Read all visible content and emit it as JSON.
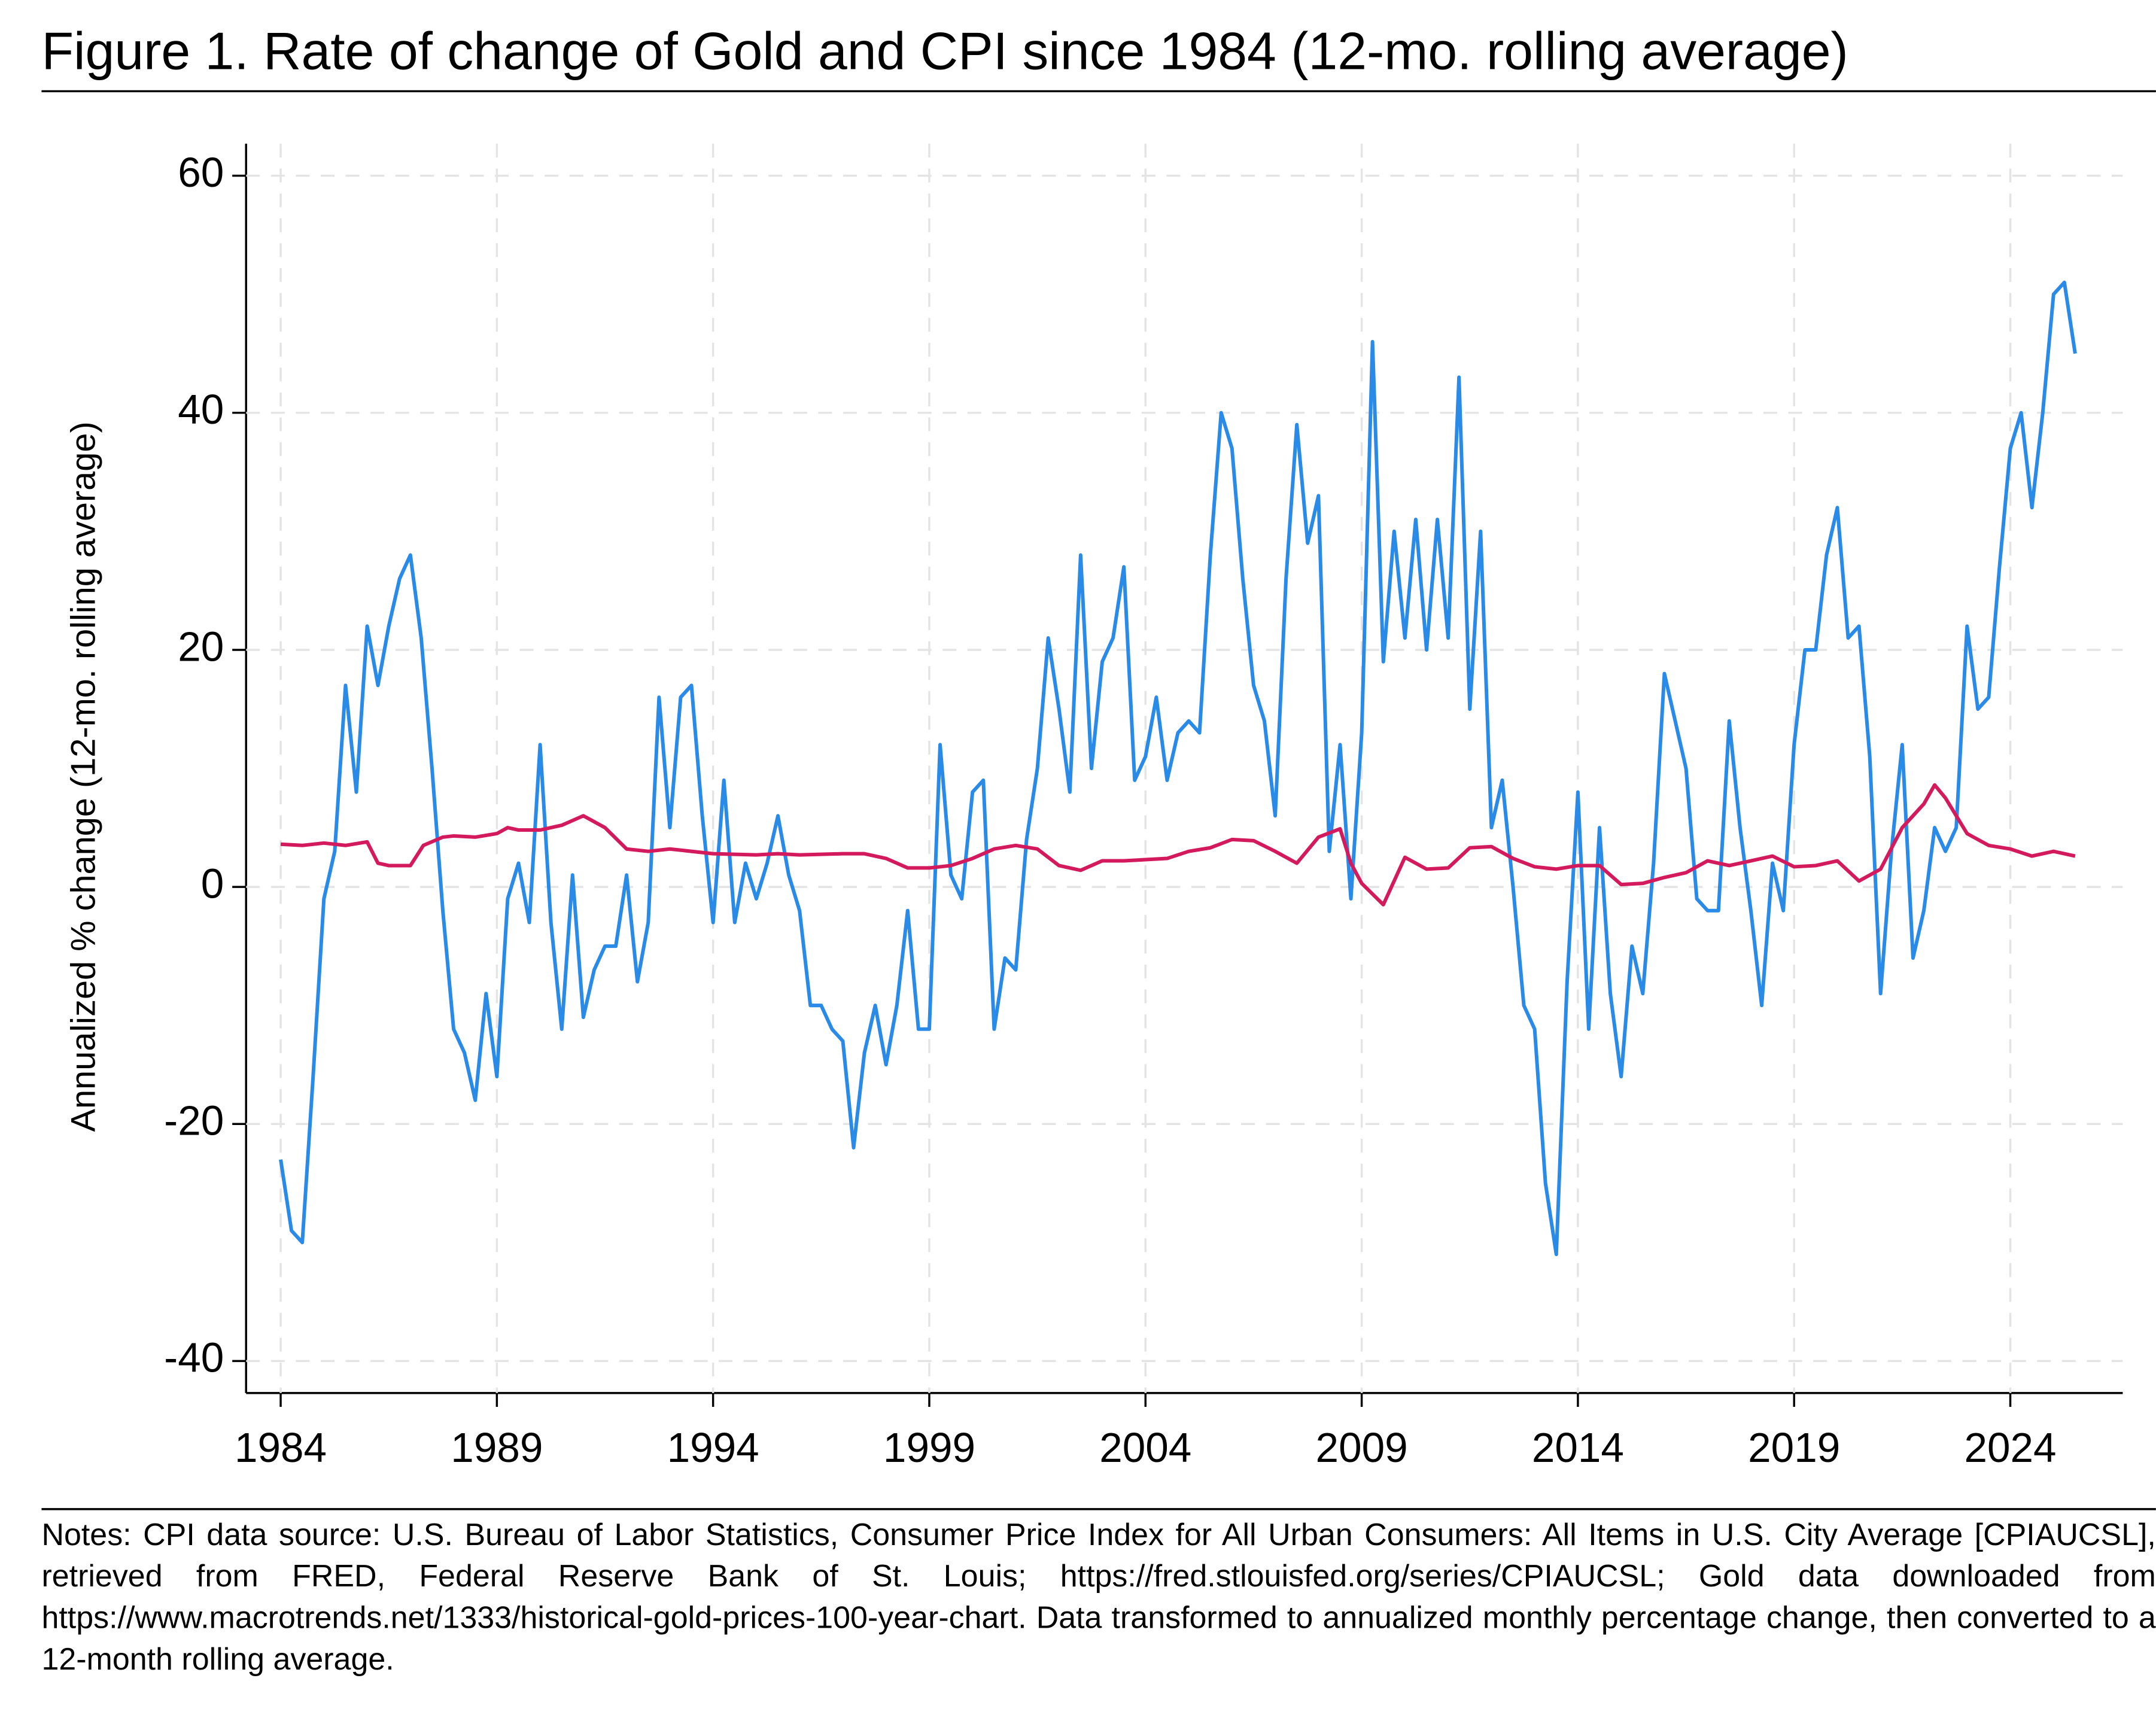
{
  "chart_data": {
    "type": "line",
    "title": "Figure 1. Rate of change of Gold and CPI since 1984 (12-mo. rolling average)",
    "y_label": "Annualized % change (12-mo. rolling average)",
    "notes": "Notes: CPI data source: U.S. Bureau of Labor Statistics, Consumer Price Index for All Urban Consumers: All Items in U.S. City Average [CPIAUCSL], retrieved from FRED, Federal Reserve Bank of St. Louis; https://fred.stlouisfed.org/series/CPIAUCSL; Gold data downloaded from https://www.macrotrends.net/1333/historical-gold-prices-100-year-chart. Data transformed to annualized monthly percentage change, then converted to a 12-month rolling average.",
    "xlim": [
      1983.2,
      2026.6
    ],
    "ylim": [
      -42.7,
      62.7
    ],
    "xticks": [
      1984,
      1989,
      1994,
      1999,
      2004,
      2009,
      2014,
      2019,
      2024
    ],
    "yticks": [
      -40,
      -20,
      0,
      20,
      40,
      60
    ],
    "grid": true,
    "series": [
      {
        "color": "#2a8ae8",
        "x": [
          1984,
          1984.25,
          1984.5,
          1984.75,
          1985,
          1985.25,
          1985.5,
          1985.75,
          1986,
          1986.25,
          1986.5,
          1986.75,
          1987,
          1987.25,
          1987.5,
          1987.75,
          1988,
          1988.25,
          1988.5,
          1988.75,
          1989,
          1989.25,
          1989.5,
          1989.75,
          1990,
          1990.25,
          1990.5,
          1990.75,
          1991,
          1991.25,
          1991.5,
          1991.75,
          1992,
          1992.25,
          1992.5,
          1992.75,
          1993,
          1993.25,
          1993.5,
          1993.75,
          1994,
          1994.25,
          1994.5,
          1994.75,
          1995,
          1995.25,
          1995.5,
          1995.75,
          1996,
          1996.25,
          1996.5,
          1996.75,
          1997,
          1997.25,
          1997.5,
          1997.75,
          1998,
          1998.25,
          1998.5,
          1998.75,
          1999,
          1999.25,
          1999.5,
          1999.75,
          2000,
          2000.25,
          2000.5,
          2000.75,
          2001,
          2001.25,
          2001.5,
          2001.75,
          2002,
          2002.25,
          2002.5,
          2002.75,
          2003,
          2003.25,
          2003.5,
          2003.75,
          2004,
          2004.25,
          2004.5,
          2004.75,
          2005,
          2005.25,
          2005.5,
          2005.75,
          2006,
          2006.25,
          2006.5,
          2006.75,
          2007,
          2007.25,
          2007.5,
          2007.75,
          2008,
          2008.25,
          2008.5,
          2008.75,
          2009,
          2009.25,
          2009.5,
          2009.75,
          2010,
          2010.25,
          2010.5,
          2010.75,
          2011,
          2011.25,
          2011.5,
          2011.75,
          2012,
          2012.25,
          2012.5,
          2012.75,
          2013,
          2013.25,
          2013.5,
          2013.75,
          2014,
          2014.25,
          2014.5,
          2014.75,
          2015,
          2015.25,
          2015.5,
          2015.75,
          2016,
          2016.25,
          2016.5,
          2016.75,
          2017,
          2017.25,
          2017.5,
          2017.75,
          2018,
          2018.25,
          2018.5,
          2018.75,
          2019,
          2019.25,
          2019.5,
          2019.75,
          2020,
          2020.25,
          2020.5,
          2020.75,
          2021,
          2021.25,
          2021.5,
          2021.75,
          2022,
          2022.25,
          2022.5,
          2022.75,
          2023,
          2023.25,
          2023.5,
          2023.75,
          2024,
          2024.25,
          2024.5,
          2024.75,
          2025,
          2025.25,
          2025.5
        ],
        "values": [
          -23,
          -29,
          -30,
          -16,
          -1,
          3,
          17,
          8,
          22,
          17,
          22,
          26,
          28,
          21,
          10,
          -2,
          -12,
          -14,
          -18,
          -9,
          -16,
          -1,
          2,
          -3,
          12,
          -3,
          -12,
          1,
          -11,
          -7,
          -5,
          -5,
          1,
          -8,
          -3,
          16,
          5,
          16,
          17,
          6,
          -3,
          9,
          -3,
          2,
          -1,
          2,
          6,
          1,
          -2,
          -10,
          -10,
          -12,
          -13,
          -22,
          -14,
          -10,
          -15,
          -10,
          -2,
          -12,
          -12,
          12,
          1,
          -1,
          8,
          9,
          -12,
          -6,
          -7,
          4,
          10,
          21,
          15,
          8,
          28,
          10,
          19,
          21,
          27,
          9,
          11,
          16,
          9,
          13,
          14,
          13,
          28,
          40,
          37,
          26,
          17,
          14,
          6,
          26,
          39,
          29,
          33,
          3,
          12,
          -1,
          13,
          46,
          19,
          30,
          21,
          31,
          20,
          31,
          21,
          43,
          15,
          30,
          5,
          9,
          0,
          -10,
          -12,
          -25,
          -31,
          -8,
          8,
          -12,
          5,
          -9,
          -16,
          -5,
          -9,
          2,
          18,
          14,
          10,
          -1,
          -2,
          -2,
          14,
          5,
          -2,
          -10,
          2,
          -2,
          12,
          20,
          20,
          28,
          32,
          21,
          22,
          11,
          -9,
          3,
          12,
          -6,
          -2,
          5,
          3,
          5,
          22,
          15,
          16,
          27,
          37,
          40,
          32,
          40,
          50,
          51,
          45
        ]
      },
      {
        "color": "#d31a5c",
        "x": [
          1984,
          1984.5,
          1985,
          1985.5,
          1986,
          1986.25,
          1986.5,
          1987,
          1987.3,
          1987.75,
          1988,
          1988.5,
          1989,
          1989.25,
          1989.5,
          1990,
          1990.5,
          1991,
          1991.5,
          1992,
          1992.5,
          1993,
          1994,
          1995,
          1995.5,
          1996,
          1997,
          1997.5,
          1998,
          1998.5,
          1999,
          1999.5,
          2000,
          2000.5,
          2001,
          2001.5,
          2002,
          2002.5,
          2003,
          2003.5,
          2004,
          2004.5,
          2005,
          2005.5,
          2006,
          2006.5,
          2007,
          2007.5,
          2008,
          2008.5,
          2008.75,
          2009,
          2009.5,
          2010,
          2010.5,
          2011,
          2011.5,
          2012,
          2012.5,
          2013,
          2013.5,
          2014,
          2014.5,
          2015,
          2015.5,
          2016,
          2016.5,
          2017,
          2017.5,
          2018,
          2018.5,
          2019,
          2019.5,
          2020,
          2020.5,
          2021,
          2021.5,
          2022,
          2022.25,
          2022.5,
          2023,
          2023.5,
          2024,
          2024.5,
          2025,
          2025.5
        ],
        "values": [
          3.6,
          3.5,
          3.7,
          3.5,
          3.8,
          2,
          1.8,
          1.8,
          3.5,
          4.2,
          4.3,
          4.2,
          4.5,
          5,
          4.8,
          4.8,
          5.2,
          6,
          5,
          3.2,
          3,
          3.2,
          2.8,
          2.7,
          2.8,
          2.7,
          2.8,
          2.8,
          2.4,
          1.6,
          1.6,
          1.8,
          2.4,
          3.2,
          3.5,
          3.2,
          1.8,
          1.4,
          2.2,
          2.2,
          2.3,
          2.4,
          3,
          3.3,
          4,
          3.9,
          3,
          2,
          4.2,
          4.9,
          2,
          0.3,
          -1.5,
          2.5,
          1.5,
          1.6,
          3.3,
          3.4,
          2.4,
          1.7,
          1.5,
          1.8,
          1.8,
          0.2,
          0.3,
          0.8,
          1.2,
          2.2,
          1.8,
          2.2,
          2.6,
          1.7,
          1.8,
          2.2,
          0.5,
          1.5,
          5,
          7,
          8.6,
          7.5,
          4.5,
          3.5,
          3.2,
          2.6,
          3,
          2.6
        ]
      }
    ]
  }
}
